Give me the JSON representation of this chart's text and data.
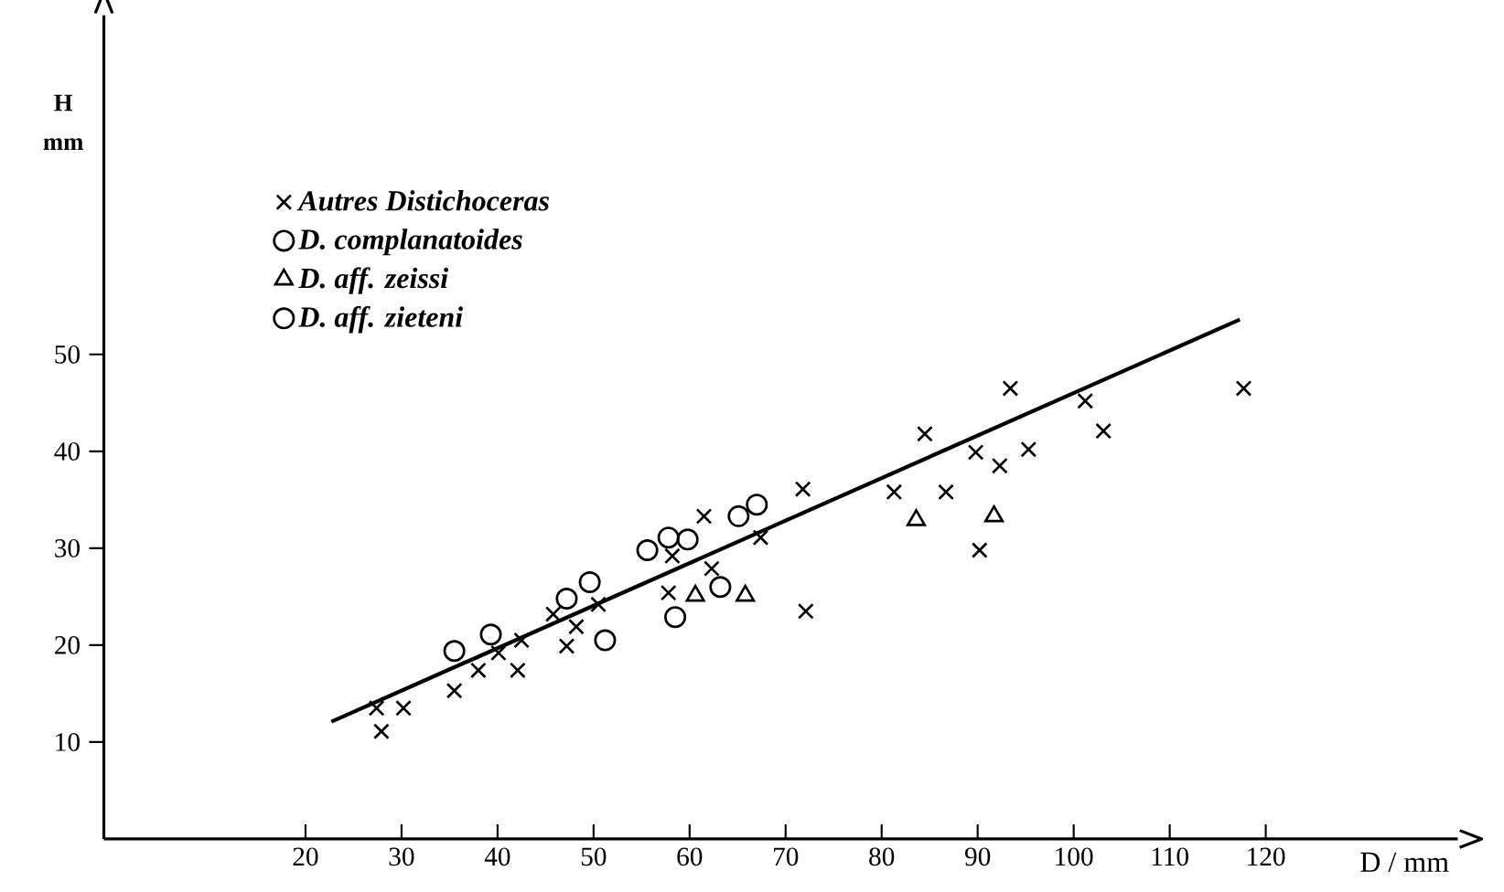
{
  "chart_data": {
    "type": "scatter",
    "xlabel": "D / mm",
    "ylabel": "H mm",
    "xlim": [
      -1,
      140
    ],
    "ylim": [
      0,
      85
    ],
    "xticks": [
      20,
      30,
      40,
      50,
      60,
      70,
      80,
      90,
      100,
      110,
      120
    ],
    "yticks": [
      10,
      20,
      30,
      40,
      50
    ],
    "legend": "top left",
    "grid": false,
    "series": [
      {
        "name": "Autres Distichoceras",
        "color": "#000000",
        "marker": "cross",
        "x": [
          27.4,
          27.9,
          30.2,
          35.5,
          38.0,
          40.1,
          42.1,
          42.5,
          45.8,
          47.2,
          48.2,
          50.5,
          58.2,
          57.8,
          61.5,
          62.3,
          67.4,
          71.8,
          72.1,
          81.3,
          84.5,
          86.7,
          89.8,
          90.2,
          92.3,
          93.4,
          95.3,
          101.2,
          103.1,
          117.7
        ],
        "values": [
          13.5,
          11.1,
          13.5,
          15.3,
          17.4,
          19.2,
          17.4,
          20.5,
          23.2,
          19.9,
          21.9,
          24.2,
          29.2,
          25.4,
          33.3,
          27.9,
          31.1,
          36.1,
          23.5,
          35.8,
          41.8,
          35.8,
          39.9,
          29.8,
          38.5,
          46.5,
          40.2,
          45.2,
          42.1,
          46.5
        ]
      },
      {
        "name": "D. complanatoides",
        "color": "#000000",
        "marker": "circle",
        "x": [
          35.5,
          39.3,
          47.2,
          49.6,
          55.6,
          57.8,
          59.8,
          65.1,
          67.0
        ],
        "values": [
          19.4,
          21.1,
          24.8,
          26.5,
          29.8,
          31.1,
          30.9,
          33.3,
          34.5
        ]
      },
      {
        "name": "D. aff. zeissi",
        "color": "#000000",
        "marker": "triangle",
        "x": [
          60.6,
          65.8,
          83.6,
          91.7
        ],
        "values": [
          25.1,
          25.1,
          32.9,
          33.3
        ]
      },
      {
        "name": "D. aff. zieteni",
        "color": "#000000",
        "marker": "circle",
        "x": [
          51.2,
          58.5,
          63.2
        ],
        "values": [
          20.5,
          22.9,
          26.0
        ]
      },
      {
        "type": "line",
        "color": "#000000",
        "marker": "none",
        "x": [
          22.7,
          117.3
        ],
        "values": [
          12.1,
          53.6
        ]
      }
    ]
  }
}
